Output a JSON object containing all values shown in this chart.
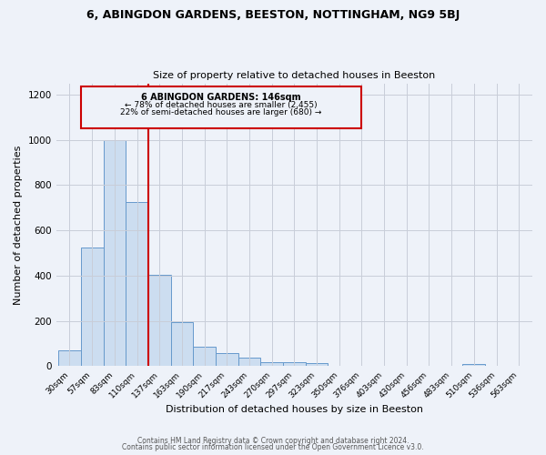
{
  "title": "6, ABINGDON GARDENS, BEESTON, NOTTINGHAM, NG9 5BJ",
  "subtitle": "Size of property relative to detached houses in Beeston",
  "xlabel": "Distribution of detached houses by size in Beeston",
  "ylabel": "Number of detached properties",
  "bar_color": "#ccddf0",
  "bar_edge_color": "#6699cc",
  "bg_color": "#eef2f9",
  "grid_color": "#c8cdd8",
  "annotation_box_color": "#cc0000",
  "vline_color": "#cc0000",
  "categories": [
    "30sqm",
    "57sqm",
    "83sqm",
    "110sqm",
    "137sqm",
    "163sqm",
    "190sqm",
    "217sqm",
    "243sqm",
    "270sqm",
    "297sqm",
    "323sqm",
    "350sqm",
    "376sqm",
    "403sqm",
    "430sqm",
    "456sqm",
    "483sqm",
    "510sqm",
    "536sqm",
    "563sqm"
  ],
  "values": [
    70,
    525,
    1000,
    725,
    405,
    195,
    85,
    58,
    38,
    20,
    18,
    15,
    0,
    0,
    0,
    0,
    0,
    0,
    12,
    0,
    0
  ],
  "ylim": [
    0,
    1250
  ],
  "yticks": [
    0,
    200,
    400,
    600,
    800,
    1000,
    1200
  ],
  "vline_pos": 3.5,
  "annotation_text_line1": "6 ABINGDON GARDENS: 146sqm",
  "annotation_text_line2": "← 78% of detached houses are smaller (2,455)",
  "annotation_text_line3": "22% of semi-detached houses are larger (680) →",
  "footer_line1": "Contains HM Land Registry data © Crown copyright and database right 2024.",
  "footer_line2": "Contains public sector information licensed under the Open Government Licence v3.0."
}
